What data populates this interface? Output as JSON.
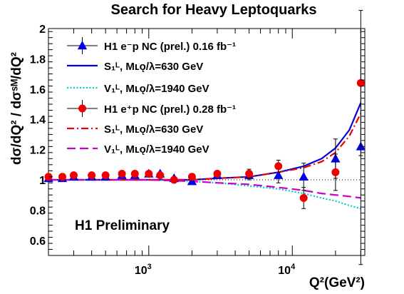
{
  "chart_data": {
    "type": "scatter",
    "title": "Search for Heavy Leptoquarks",
    "xlabel": "Q²(GeV²)",
    "ylabel": "dσ/dQ² / dσˢᴹ/dQ²",
    "xscale": "log",
    "xlim": [
      200,
      32000
    ],
    "ylim": [
      0.5,
      2.0
    ],
    "yticks": [
      0.6,
      0.8,
      1,
      1.2,
      1.4,
      1.6,
      1.8,
      2
    ],
    "xtick_labels": [
      {
        "value": 1000,
        "base": "10",
        "exp": "3"
      },
      {
        "value": 10000,
        "base": "10",
        "exp": "4"
      }
    ],
    "reference_line": 1,
    "annotation": "H1 Preliminary",
    "legend": {
      "placement": "top-left",
      "entries": [
        {
          "key": "ep_minus",
          "text": "H1 e⁻p NC (prel.) 0.16 fb⁻¹"
        },
        {
          "key": "s1_minus",
          "text": "S₁ᴸ,   Mʟǫ/λ=630 GeV"
        },
        {
          "key": "v1_minus",
          "text": "V₁ᴸ,   Mʟǫ/λ=1940 GeV"
        },
        {
          "key": "ep_plus",
          "text": "H1 e⁺p NC (prel.) 0.28 fb⁻¹"
        },
        {
          "key": "s1_plus",
          "text": "S₁ᴸ,   Mʟǫ/λ=630 GeV"
        },
        {
          "key": "v1_plus",
          "text": "V₁ᴸ,   Mʟǫ/λ=1940 GeV"
        }
      ]
    },
    "series": [
      {
        "key": "ep_minus",
        "kind": "points",
        "marker": "triangle",
        "color": "#0000ee",
        "points": [
          {
            "x": 200,
            "y": 1.01,
            "err": 0.01
          },
          {
            "x": 250,
            "y": 1.01,
            "err": 0.01
          },
          {
            "x": 300,
            "y": 1.02,
            "err": 0.01
          },
          {
            "x": 400,
            "y": 1.02,
            "err": 0.01
          },
          {
            "x": 500,
            "y": 1.02,
            "err": 0.01
          },
          {
            "x": 650,
            "y": 1.03,
            "err": 0.01
          },
          {
            "x": 800,
            "y": 1.03,
            "err": 0.01
          },
          {
            "x": 1000,
            "y": 1.04,
            "err": 0.01
          },
          {
            "x": 1200,
            "y": 1.04,
            "err": 0.01
          },
          {
            "x": 1500,
            "y": 1.01,
            "err": 0.01
          },
          {
            "x": 2000,
            "y": 0.99,
            "err": 0.01
          },
          {
            "x": 3000,
            "y": 1.03,
            "err": 0.02
          },
          {
            "x": 5000,
            "y": 1.03,
            "err": 0.03
          },
          {
            "x": 8000,
            "y": 1.03,
            "err": 0.05
          },
          {
            "x": 12000,
            "y": 1.02,
            "err": 0.09
          },
          {
            "x": 20000,
            "y": 1.14,
            "err": 0.13
          },
          {
            "x": 30000,
            "y": 1.22,
            "err": 0.78
          }
        ]
      },
      {
        "key": "ep_plus",
        "kind": "points",
        "marker": "circle",
        "color": "#ee0000",
        "points": [
          {
            "x": 200,
            "y": 1.02,
            "err": 0.01
          },
          {
            "x": 250,
            "y": 1.02,
            "err": 0.01
          },
          {
            "x": 300,
            "y": 1.03,
            "err": 0.01
          },
          {
            "x": 400,
            "y": 1.03,
            "err": 0.01
          },
          {
            "x": 500,
            "y": 1.03,
            "err": 0.01
          },
          {
            "x": 650,
            "y": 1.04,
            "err": 0.01
          },
          {
            "x": 800,
            "y": 1.04,
            "err": 0.01
          },
          {
            "x": 1000,
            "y": 1.04,
            "err": 0.01
          },
          {
            "x": 1200,
            "y": 1.03,
            "err": 0.01
          },
          {
            "x": 1500,
            "y": 1.0,
            "err": 0.01
          },
          {
            "x": 2000,
            "y": 1.02,
            "err": 0.01
          },
          {
            "x": 3000,
            "y": 1.04,
            "err": 0.02
          },
          {
            "x": 5000,
            "y": 1.04,
            "err": 0.03
          },
          {
            "x": 8000,
            "y": 1.09,
            "err": 0.04
          },
          {
            "x": 12000,
            "y": 0.88,
            "err": 0.07
          },
          {
            "x": 20000,
            "y": 1.05,
            "err": 0.12
          },
          {
            "x": 30000,
            "y": 1.64,
            "err": 0.48
          }
        ]
      },
      {
        "key": "s1_minus",
        "kind": "curve",
        "color": "#0000dd",
        "dash": "solid",
        "points": [
          {
            "x": 200,
            "y": 1.0
          },
          {
            "x": 1000,
            "y": 1.0
          },
          {
            "x": 2000,
            "y": 1.0
          },
          {
            "x": 3000,
            "y": 1.01
          },
          {
            "x": 5000,
            "y": 1.02
          },
          {
            "x": 8000,
            "y": 1.05
          },
          {
            "x": 12000,
            "y": 1.09
          },
          {
            "x": 16000,
            "y": 1.14
          },
          {
            "x": 20000,
            "y": 1.21
          },
          {
            "x": 25000,
            "y": 1.33
          },
          {
            "x": 30000,
            "y": 1.51
          }
        ]
      },
      {
        "key": "v1_minus",
        "kind": "curve",
        "color": "#00cccc",
        "dash": "dotted",
        "points": [
          {
            "x": 200,
            "y": 1.0
          },
          {
            "x": 1000,
            "y": 1.0
          },
          {
            "x": 2000,
            "y": 0.99
          },
          {
            "x": 3000,
            "y": 0.98
          },
          {
            "x": 5000,
            "y": 0.96
          },
          {
            "x": 8000,
            "y": 0.94
          },
          {
            "x": 12000,
            "y": 0.91
          },
          {
            "x": 16000,
            "y": 0.88
          },
          {
            "x": 20000,
            "y": 0.86
          },
          {
            "x": 25000,
            "y": 0.83
          },
          {
            "x": 30000,
            "y": 0.81
          }
        ]
      },
      {
        "key": "s1_plus",
        "kind": "curve",
        "color": "#ee0000",
        "dash": "dashdot",
        "points": [
          {
            "x": 200,
            "y": 1.0
          },
          {
            "x": 1000,
            "y": 1.0
          },
          {
            "x": 2000,
            "y": 1.0
          },
          {
            "x": 3000,
            "y": 1.01
          },
          {
            "x": 5000,
            "y": 1.02
          },
          {
            "x": 8000,
            "y": 1.05
          },
          {
            "x": 12000,
            "y": 1.08
          },
          {
            "x": 16000,
            "y": 1.12
          },
          {
            "x": 20000,
            "y": 1.18
          },
          {
            "x": 25000,
            "y": 1.29
          },
          {
            "x": 30000,
            "y": 1.44
          }
        ]
      },
      {
        "key": "v1_plus",
        "kind": "curve",
        "color": "#cc00cc",
        "dash": "dashed",
        "points": [
          {
            "x": 200,
            "y": 1.0
          },
          {
            "x": 1000,
            "y": 1.0
          },
          {
            "x": 2000,
            "y": 0.99
          },
          {
            "x": 3000,
            "y": 0.98
          },
          {
            "x": 5000,
            "y": 0.97
          },
          {
            "x": 8000,
            "y": 0.95
          },
          {
            "x": 12000,
            "y": 0.93
          },
          {
            "x": 16000,
            "y": 0.91
          },
          {
            "x": 20000,
            "y": 0.9
          },
          {
            "x": 25000,
            "y": 0.89
          },
          {
            "x": 30000,
            "y": 0.88
          }
        ]
      }
    ]
  }
}
